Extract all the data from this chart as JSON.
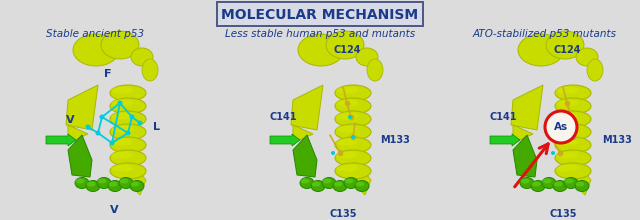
{
  "title": "MOLECULAR MECHANISM",
  "title_color": "#1a3a8a",
  "title_fontsize": 10,
  "title_box_facecolor": "#d8dae5",
  "title_box_edgecolor": "#4a5888",
  "bg_color": "#dcdcdc",
  "panel_titles": [
    "Stable ancient p53",
    "Less stable human p53 and mutants",
    "ATO-stabilized p53 mutants"
  ],
  "panel_title_color": "#1a3a8a",
  "panel_title_fontsize": 7.5,
  "label_color": "#1a3a8a",
  "label_fontsize": 7.0,
  "protein_yg": "#c8dc00",
  "protein_yg2": "#a8b800",
  "protein_green": "#44aa00",
  "cyan_color": "#00ccdd",
  "yellow_stick": "#ccaa22",
  "green_arrow_color": "#22cc22",
  "red_color": "#dd1111",
  "white_fill": "#f8f5ee"
}
